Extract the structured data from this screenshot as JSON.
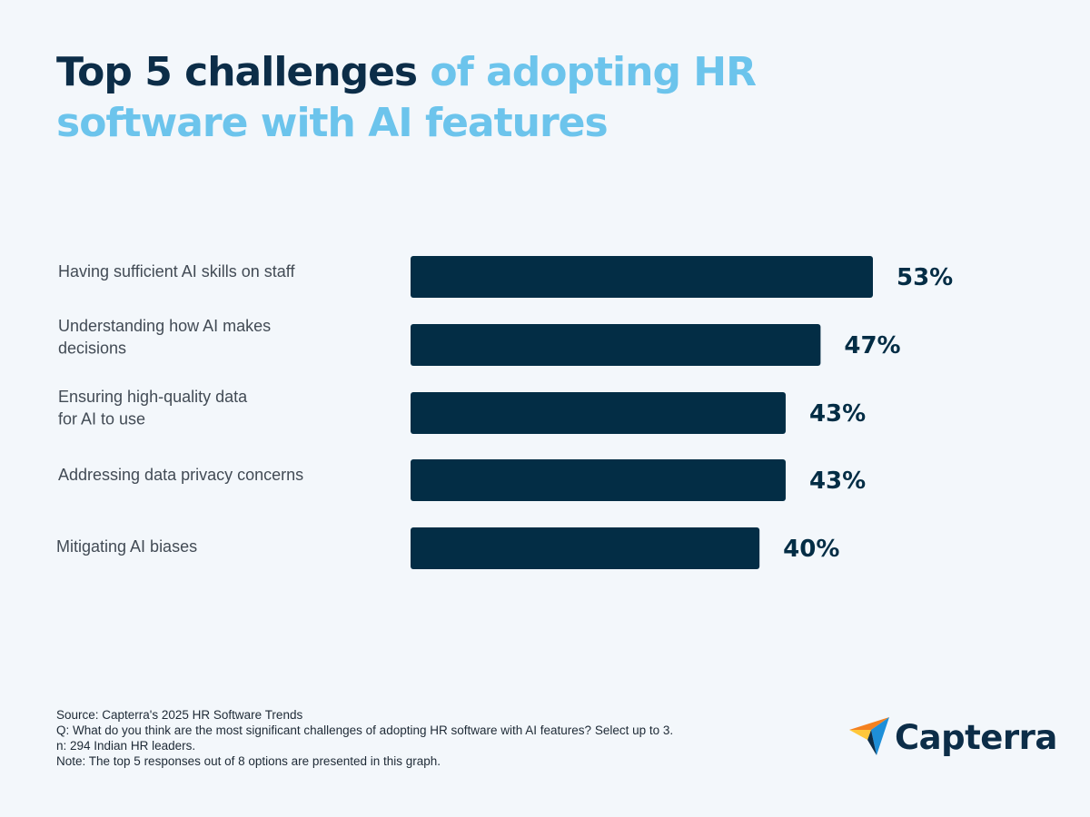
{
  "header": {
    "title_dark": "Top 5 challenges ",
    "title_light": "of adopting HR software with AI features"
  },
  "chart_data": {
    "type": "bar",
    "orientation": "horizontal",
    "categories": [
      "Having sufficient AI skills on staff",
      "Understanding how AI makes decisions",
      "Ensuring high-quality data for AI to use",
      "Addressing data privacy concerns",
      "Mitigating AI biases"
    ],
    "category_lines": [
      [
        "Having sufficient AI skills on staff"
      ],
      [
        "Understanding how AI makes",
        "decisions"
      ],
      [
        "Ensuring high-quality data",
        "for AI to use"
      ],
      [
        "Addressing data privacy concerns"
      ],
      [
        "Mitigating AI biases"
      ]
    ],
    "values": [
      53,
      47,
      43,
      43,
      40
    ],
    "value_labels": [
      "53%",
      "47%",
      "43%",
      "43%",
      "40%"
    ],
    "xlim": [
      0,
      100
    ],
    "grid": false,
    "bar_color": "#032d45",
    "label_color": "#424b55"
  },
  "footer": {
    "source": "Source: Capterra's 2025 HR Software Trends",
    "question": "Q: What do you think are the most significant challenges of adopting HR software with AI features? Select up to 3.",
    "sample": "n: 294 Indian HR leaders.",
    "note": "Note: The top 5 responses out of 8 options are presented in this graph."
  },
  "brand": {
    "name": "Capterra",
    "logo_icon": "capterra-arrow-icon",
    "colors": {
      "dark": "#0c2d48",
      "light": "#6cc4ec",
      "orange": "#f48120",
      "blue": "#1e8fd8",
      "yellow": "#ffc73a"
    }
  }
}
